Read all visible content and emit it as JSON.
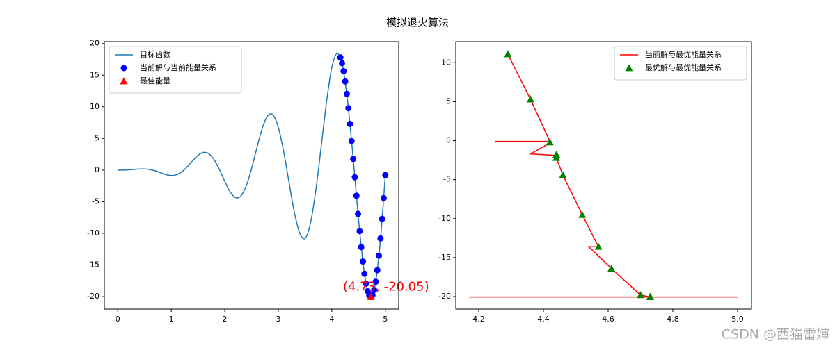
{
  "title": "模拟退火算法",
  "watermark": "CSDN @西猫雷婶",
  "chart_data": [
    {
      "type": "line",
      "legend": "upper left",
      "annotation": "(4.73, -20.05)",
      "xlim": [
        -0.25,
        5.25
      ],
      "ylim": [
        -21.97,
        20.3
      ],
      "xticks": [
        0,
        1,
        2,
        3,
        4,
        5
      ],
      "yticks": [
        -20,
        -15,
        -10,
        -5,
        0,
        5,
        10,
        15,
        20
      ],
      "series": [
        {
          "name": "目标函数",
          "type": "line",
          "color": "#1f77b4",
          "x": [
            0,
            0.1,
            0.2,
            0.3,
            0.4,
            0.5,
            0.6,
            0.7,
            0.8,
            0.9,
            1.0,
            1.1,
            1.2,
            1.3,
            1.4,
            1.5,
            1.6,
            1.7,
            1.8,
            1.9,
            2.0,
            2.1,
            2.2,
            2.3,
            2.4,
            2.5,
            2.6,
            2.7,
            2.8,
            2.9,
            3.0,
            3.1,
            3.2,
            3.3,
            3.4,
            3.5,
            3.6,
            3.7,
            3.8,
            3.9,
            4.0,
            4.1,
            4.2,
            4.3,
            4.4,
            4.5,
            4.6,
            4.7,
            4.8,
            4.9,
            5.0
          ],
          "values": [
            0,
            0.006,
            0.038,
            0.099,
            0.161,
            0.175,
            0.087,
            -0.123,
            -0.42,
            -0.711,
            -0.859,
            -0.733,
            -0.258,
            0.532,
            1.484,
            2.336,
            2.788,
            2.595,
            1.659,
            0.09,
            -1.776,
            -3.44,
            -4.356,
            -4.1,
            -2.517,
            0.213,
            3.515,
            6.59,
            8.553,
            8.704,
            6.75,
            2.95,
            -1.925,
            -6.665,
            -9.953,
            -10.78,
            -8.437,
            -3.272,
            3.61,
            10.693,
            16.208,
            18.424,
            16.529,
            10.484,
            1.762,
            -7.857,
            -15.785,
            -19.815,
            -18.57,
            -11.813,
            -0.8
          ]
        },
        {
          "name": "当前解与当前能量关系",
          "type": "scatter",
          "marker": "o",
          "color": "blue",
          "x": [
            4.16,
            4.19,
            4.22,
            4.25,
            4.28,
            4.31,
            4.34,
            4.37,
            4.4,
            4.43,
            4.46,
            4.49,
            4.52,
            4.55,
            4.58,
            4.61,
            4.64,
            4.67,
            4.7,
            4.73,
            4.76,
            4.79,
            4.82,
            4.85,
            4.88,
            4.91,
            4.94,
            4.97,
            5.0
          ],
          "values": [
            17.81,
            16.91,
            15.64,
            14.01,
            12.05,
            9.79,
            7.3,
            4.6,
            1.76,
            -1.13,
            -4.05,
            -6.92,
            -9.65,
            -12.18,
            -14.45,
            -16.39,
            -17.95,
            -19.14,
            -19.82,
            -20.05,
            -19.75,
            -18.95,
            -17.65,
            -15.82,
            -13.54,
            -10.81,
            -7.71,
            -4.43,
            -0.8
          ]
        },
        {
          "name": "最佳能量",
          "type": "scatter",
          "marker": "^",
          "color": "red",
          "x": [
            4.73
          ],
          "values": [
            -20.05
          ]
        }
      ]
    },
    {
      "type": "line",
      "legend": "upper right",
      "xlim": [
        4.129,
        5.043
      ],
      "ylim": [
        -21.6,
        12.7
      ],
      "xticks": [
        4.2,
        4.4,
        4.6,
        4.8,
        {
          "value": 5,
          "label": "5.0"
        }
      ],
      "yticks": [
        -20,
        -15,
        -10,
        -5,
        0,
        5,
        10
      ],
      "series": [
        {
          "name": "当前解与最优能量关系",
          "type": "line",
          "color": "red",
          "x": [
            4.29,
            4.36,
            4.42,
            4.25,
            4.42,
            4.42,
            4.36,
            4.44,
            4.44,
            4.46,
            4.52,
            4.57,
            4.54,
            4.61,
            4.7,
            4.73,
            4.17,
            5.0
          ],
          "values": [
            11.1,
            5.3,
            -0.1,
            -0.1,
            -0.1,
            -0.3,
            -1.7,
            -1.9,
            -2.2,
            -4.4,
            -9.5,
            -13.6,
            -13.6,
            -16.4,
            -19.8,
            -20.05,
            -20.05,
            -20.05
          ]
        },
        {
          "name": "最优解与最优能量关系",
          "type": "scatter",
          "marker": "^",
          "color": "green",
          "x": [
            4.29,
            4.36,
            4.42,
            4.44,
            4.44,
            4.46,
            4.52,
            4.57,
            4.61,
            4.7,
            4.73,
            4.73
          ],
          "values": [
            11.1,
            5.3,
            -0.2,
            -1.8,
            -2.2,
            -4.4,
            -9.5,
            -13.6,
            -16.4,
            -19.8,
            -20.0,
            -20.05
          ]
        }
      ]
    }
  ]
}
